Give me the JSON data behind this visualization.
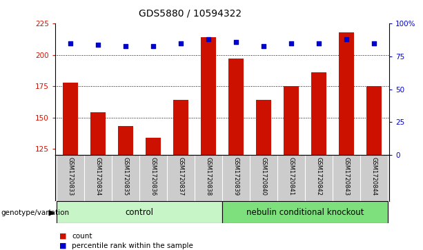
{
  "title": "GDS5880 / 10594322",
  "samples": [
    "GSM1720833",
    "GSM1720834",
    "GSM1720835",
    "GSM1720836",
    "GSM1720837",
    "GSM1720838",
    "GSM1720839",
    "GSM1720840",
    "GSM1720841",
    "GSM1720842",
    "GSM1720843",
    "GSM1720844"
  ],
  "counts": [
    178,
    154,
    143,
    134,
    164,
    214,
    197,
    164,
    175,
    186,
    218,
    175
  ],
  "percentile_ranks": [
    85,
    84,
    83,
    83,
    85,
    88,
    86,
    83,
    85,
    85,
    88,
    85
  ],
  "n_control": 6,
  "n_knockout": 6,
  "control_color": "#c8f5c8",
  "knockout_color": "#7de07d",
  "bar_color": "#cc1100",
  "dot_color": "#0000cc",
  "bar_bottom": 120,
  "ylim_left": [
    120,
    225
  ],
  "ylim_right": [
    0,
    100
  ],
  "yticks_left": [
    125,
    150,
    175,
    200,
    225
  ],
  "yticks_right": [
    0,
    25,
    50,
    75,
    100
  ],
  "ytick_right_labels": [
    "0",
    "25",
    "50",
    "75",
    "100%"
  ],
  "grid_values": [
    150,
    175,
    200
  ],
  "left_tick_color": "#cc1100",
  "right_tick_color": "#0000cc",
  "bg_color": "#cccccc",
  "plot_bg_color": "#ffffff"
}
